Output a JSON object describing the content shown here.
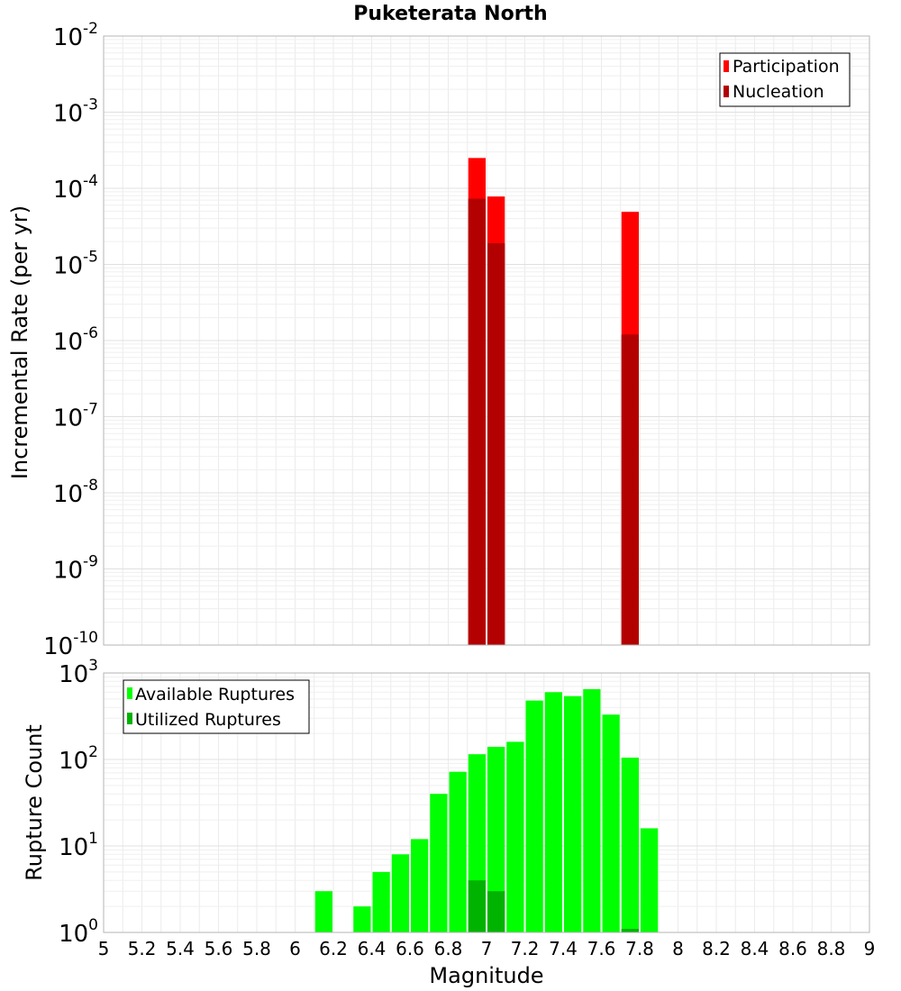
{
  "chart_data": [
    {
      "id": "rates",
      "type": "bar",
      "title": "Puketerata North",
      "ylabel": "Incremental Rate (per yr)",
      "xlabel": "",
      "yscale": "log",
      "xlim": [
        5,
        9
      ],
      "ylim_exp": [
        -10,
        -2
      ],
      "y_ticks": [
        {
          "base": "10",
          "exp": "-10",
          "e": -10
        },
        {
          "base": "10",
          "exp": "-9",
          "e": -9
        },
        {
          "base": "10",
          "exp": "-8",
          "e": -8
        },
        {
          "base": "10",
          "exp": "-7",
          "e": -7
        },
        {
          "base": "10",
          "exp": "-6",
          "e": -6
        },
        {
          "base": "10",
          "exp": "-5",
          "e": -5
        },
        {
          "base": "10",
          "exp": "-4",
          "e": -4
        },
        {
          "base": "10",
          "exp": "-3",
          "e": -3
        },
        {
          "base": "10",
          "exp": "-2",
          "e": -2
        }
      ],
      "legend": {
        "position": "top-right",
        "items": [
          "Participation",
          "Nucleation"
        ]
      },
      "series": [
        {
          "name": "Participation",
          "color": "#ff0000",
          "x": [
            6.95,
            7.05,
            7.75
          ],
          "values": [
            0.00025,
            7.8e-05,
            4.9e-05
          ]
        },
        {
          "name": "Nucleation",
          "color": "#b30000",
          "x": [
            6.95,
            7.05,
            7.75
          ],
          "values": [
            7.3e-05,
            1.9e-05,
            1.2e-06
          ]
        }
      ]
    },
    {
      "id": "counts",
      "type": "bar",
      "title": "",
      "ylabel": "Rupture Count",
      "xlabel": "Magnitude",
      "yscale": "log",
      "xlim": [
        5,
        9
      ],
      "ylim_exp": [
        0,
        3
      ],
      "y_ticks": [
        {
          "base": "10",
          "exp": "0",
          "e": 0
        },
        {
          "base": "10",
          "exp": "1",
          "e": 1
        },
        {
          "base": "10",
          "exp": "2",
          "e": 2
        },
        {
          "base": "10",
          "exp": "3",
          "e": 3
        }
      ],
      "x_ticks": [
        "5",
        "5.2",
        "5.4",
        "5.6",
        "5.8",
        "6",
        "6.2",
        "6.4",
        "6.6",
        "6.8",
        "7",
        "7.2",
        "7.4",
        "7.6",
        "7.8",
        "8",
        "8.2",
        "8.4",
        "8.6",
        "8.8",
        "9"
      ],
      "legend": {
        "position": "top-left",
        "items": [
          "Available Ruptures",
          "Utilized Ruptures"
        ]
      },
      "series": [
        {
          "name": "Available Ruptures",
          "color": "#00ff00",
          "x": [
            6.15,
            6.35,
            6.45,
            6.55,
            6.65,
            6.75,
            6.85,
            6.95,
            7.05,
            7.15,
            7.25,
            7.35,
            7.45,
            7.55,
            7.65,
            7.75,
            7.85
          ],
          "values": [
            3,
            2,
            5,
            8,
            12,
            40,
            72,
            115,
            140,
            160,
            480,
            600,
            540,
            650,
            330,
            105,
            16
          ]
        },
        {
          "name": "Utilized Ruptures",
          "color": "#00b300",
          "x": [
            6.95,
            7.05,
            7.75
          ],
          "values": [
            4,
            3,
            1.1
          ]
        }
      ]
    }
  ]
}
